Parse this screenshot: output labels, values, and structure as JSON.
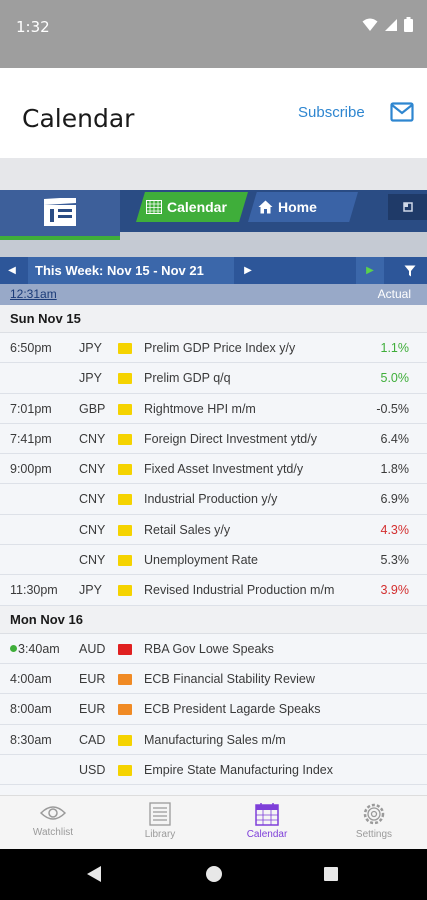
{
  "status_bar": {
    "time": "1:32"
  },
  "app_bar": {
    "title": "Calendar",
    "subscribe_label": "Subscribe"
  },
  "header_tabs": {
    "calendar_label": "Calendar",
    "home_label": "Home"
  },
  "week_bar": {
    "label": "This Week: Nov 15 - Nov 21"
  },
  "subheader": {
    "clock": "12:31am",
    "actual_label": "Actual"
  },
  "colors": {
    "positive": "#3fae3a",
    "negative": "#d32f2f",
    "neutral": "#3a3a3a",
    "flag_low": "#f5d300",
    "flag_medium": "#f08a24",
    "flag_high": "#e02020",
    "accent_nav": "#7e3fd9"
  },
  "days": [
    {
      "label": "Sun Nov 15",
      "events": [
        {
          "time": "6:50pm",
          "currency": "JPY",
          "impact": "low",
          "event": "Prelim GDP Price Index y/y",
          "actual": "1.1%",
          "tone": "positive"
        },
        {
          "time": "",
          "currency": "JPY",
          "impact": "low",
          "event": "Prelim GDP q/q",
          "actual": "5.0%",
          "tone": "positive"
        },
        {
          "time": "7:01pm",
          "currency": "GBP",
          "impact": "low",
          "event": "Rightmove HPI m/m",
          "actual": "-0.5%",
          "tone": "neutral"
        },
        {
          "time": "7:41pm",
          "currency": "CNY",
          "impact": "low",
          "event": "Foreign Direct Investment ytd/y",
          "actual": "6.4%",
          "tone": "neutral"
        },
        {
          "time": "9:00pm",
          "currency": "CNY",
          "impact": "low",
          "event": "Fixed Asset Investment ytd/y",
          "actual": "1.8%",
          "tone": "neutral"
        },
        {
          "time": "",
          "currency": "CNY",
          "impact": "low",
          "event": "Industrial Production y/y",
          "actual": "6.9%",
          "tone": "neutral"
        },
        {
          "time": "",
          "currency": "CNY",
          "impact": "low",
          "event": "Retail Sales y/y",
          "actual": "4.3%",
          "tone": "negative"
        },
        {
          "time": "",
          "currency": "CNY",
          "impact": "low",
          "event": "Unemployment Rate",
          "actual": "5.3%",
          "tone": "neutral"
        },
        {
          "time": "11:30pm",
          "currency": "JPY",
          "impact": "low",
          "event": "Revised Industrial Production m/m",
          "actual": "3.9%",
          "tone": "negative"
        }
      ]
    },
    {
      "label": "Mon Nov 16",
      "events": [
        {
          "time": "3:40am",
          "currency": "AUD",
          "impact": "high",
          "event": "RBA Gov Lowe Speaks",
          "actual": "",
          "tone": "neutral",
          "live": true
        },
        {
          "time": "4:00am",
          "currency": "EUR",
          "impact": "medium",
          "event": "ECB Financial Stability Review",
          "actual": "",
          "tone": "neutral"
        },
        {
          "time": "8:00am",
          "currency": "EUR",
          "impact": "medium",
          "event": "ECB President Lagarde Speaks",
          "actual": "",
          "tone": "neutral"
        },
        {
          "time": "8:30am",
          "currency": "CAD",
          "impact": "low",
          "event": "Manufacturing Sales m/m",
          "actual": "",
          "tone": "neutral"
        },
        {
          "time": "",
          "currency": "USD",
          "impact": "low",
          "event": "Empire State Manufacturing Index",
          "actual": "",
          "tone": "neutral"
        }
      ]
    }
  ],
  "bottom_nav": [
    {
      "label": "Watchlist",
      "icon": "eye-icon",
      "active": false
    },
    {
      "label": "Library",
      "icon": "library-icon",
      "active": false
    },
    {
      "label": "Calendar",
      "icon": "calendar-icon",
      "active": true
    },
    {
      "label": "Settings",
      "icon": "gear-icon",
      "active": false
    }
  ]
}
